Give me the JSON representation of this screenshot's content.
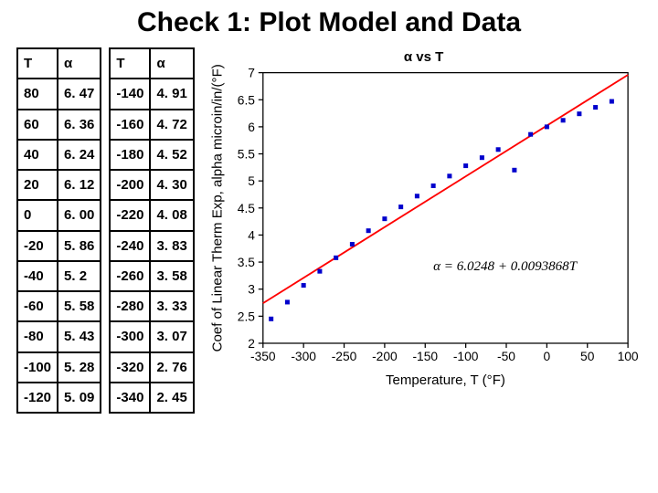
{
  "title": "Check 1: Plot Model and Data",
  "table1": {
    "headers": [
      "T",
      "α"
    ],
    "rows": [
      [
        "80",
        "6. 47"
      ],
      [
        "60",
        "6. 36"
      ],
      [
        "40",
        "6. 24"
      ],
      [
        "20",
        "6. 12"
      ],
      [
        "0",
        "6. 00"
      ],
      [
        "-20",
        "5. 86"
      ],
      [
        "-40",
        "5. 2"
      ],
      [
        "-60",
        "5. 58"
      ],
      [
        "-80",
        "5. 43"
      ],
      [
        "-100",
        "5. 28"
      ],
      [
        "-120",
        "5. 09"
      ]
    ]
  },
  "table2": {
    "headers": [
      "T",
      "α"
    ],
    "rows": [
      [
        "-140",
        "4. 91"
      ],
      [
        "-160",
        "4. 72"
      ],
      [
        "-180",
        "4. 52"
      ],
      [
        "-200",
        "4. 30"
      ],
      [
        "-220",
        "4. 08"
      ],
      [
        "-240",
        "3. 83"
      ],
      [
        "-260",
        "3. 58"
      ],
      [
        "-280",
        "3. 33"
      ],
      [
        "-300",
        "3. 07"
      ],
      [
        "-320",
        "2. 76"
      ],
      [
        "-340",
        "2. 45"
      ]
    ]
  },
  "chart": {
    "type": "scatter_with_line",
    "title": "α vs T",
    "xlabel": "Temperature, T (°F)",
    "ylabel": "Coef of Linear Therm Exp, alpha microin/in/(°F)",
    "equation": "α = 6.0248 + 0.0093868T",
    "xlim": [
      -350,
      100
    ],
    "ylim": [
      2,
      7
    ],
    "xtick_step": 50,
    "ytick_step": 0.5,
    "background_color": "#ffffff",
    "box_color": "#000000",
    "line_color": "#ff0000",
    "line_width": 1.5,
    "marker_color": "#0000cc",
    "marker_size": 4,
    "marker_style": "square",
    "label_fontsize": 11,
    "title_fontsize": 12,
    "scatter": [
      {
        "x": 80,
        "y": 6.47
      },
      {
        "x": 60,
        "y": 6.36
      },
      {
        "x": 40,
        "y": 6.24
      },
      {
        "x": 20,
        "y": 6.12
      },
      {
        "x": 0,
        "y": 6.0
      },
      {
        "x": -20,
        "y": 5.86
      },
      {
        "x": -40,
        "y": 5.2
      },
      {
        "x": -60,
        "y": 5.58
      },
      {
        "x": -80,
        "y": 5.43
      },
      {
        "x": -100,
        "y": 5.28
      },
      {
        "x": -120,
        "y": 5.09
      },
      {
        "x": -140,
        "y": 4.91
      },
      {
        "x": -160,
        "y": 4.72
      },
      {
        "x": -180,
        "y": 4.52
      },
      {
        "x": -200,
        "y": 4.3
      },
      {
        "x": -220,
        "y": 4.08
      },
      {
        "x": -240,
        "y": 3.83
      },
      {
        "x": -260,
        "y": 3.58
      },
      {
        "x": -280,
        "y": 3.33
      },
      {
        "x": -300,
        "y": 3.07
      },
      {
        "x": -320,
        "y": 2.76
      },
      {
        "x": -340,
        "y": 2.45
      }
    ],
    "fit_line": {
      "x1": -350,
      "y1": 2.74,
      "x2": 100,
      "y2": 6.96
    }
  }
}
